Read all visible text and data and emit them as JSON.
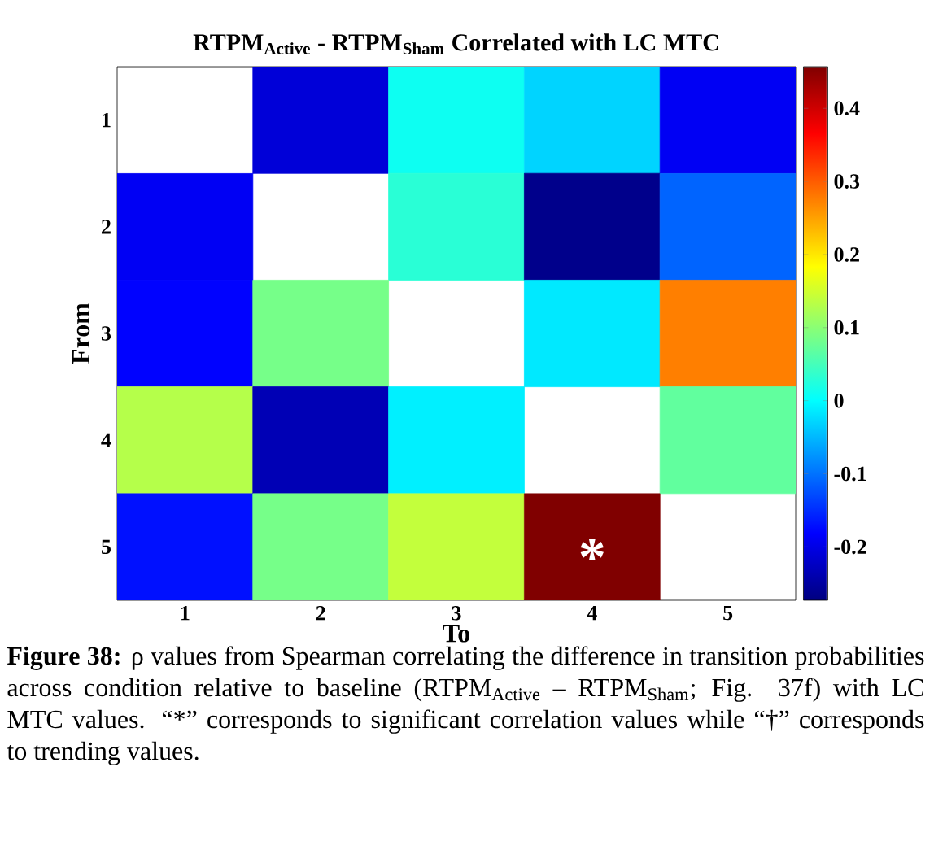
{
  "chart_data": {
    "type": "heatmap",
    "title": "RTPM$_{Active}$ - RTPM$_{Sham}$ Correlated with LC MTC",
    "xlabel": "To",
    "ylabel": "From",
    "categories": [
      "1",
      "2",
      "3",
      "4",
      "5"
    ],
    "y_categories": [
      "1",
      "2",
      "3",
      "4",
      "5"
    ],
    "cells": [
      [
        null,
        -0.21,
        0.01,
        -0.03,
        -0.19
      ],
      [
        -0.19,
        null,
        0.03,
        -0.265,
        -0.11
      ],
      [
        -0.18,
        0.085,
        null,
        -0.015,
        0.275
      ],
      [
        0.13,
        -0.235,
        -0.01,
        null,
        0.07
      ],
      [
        -0.17,
        0.085,
        0.14,
        0.457,
        null
      ]
    ],
    "clim": [
      -0.273,
      0.457
    ],
    "cticks": [
      -0.2,
      -0.1,
      0,
      0.1,
      0.2,
      0.3,
      0.4
    ],
    "annotations": [
      "*",
      "**Figure 38:** ρ values from Spearman correlating the difference in transition probabilities across condition relative to baseline (RTPM$_{Active}$ – RTPM$_{Sham}$; Fig. 37f) with LC MTC values. “*” corresponds to significant correlation values while “†” corresponds to trending values."
    ]
  }
}
